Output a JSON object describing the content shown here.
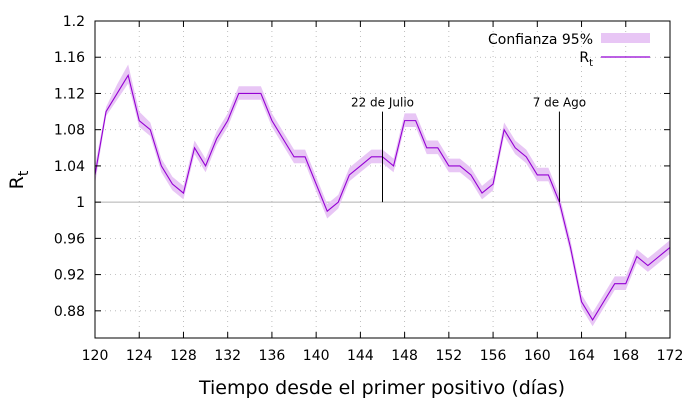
{
  "chart_data": {
    "type": "line",
    "xlabel": "Tiempo desde el primer positivo (días)",
    "ylabel": "R",
    "ylabel_sub": "t",
    "xlim": [
      120,
      172
    ],
    "ylim": [
      0.85,
      1.2
    ],
    "xticks": [
      120,
      124,
      128,
      132,
      136,
      140,
      144,
      148,
      152,
      156,
      160,
      164,
      168,
      172
    ],
    "xtick_labels": [
      "120",
      "124",
      "128",
      "132",
      "136",
      "140",
      "144",
      "148",
      "152",
      "156",
      "160",
      "164",
      "168",
      "172"
    ],
    "yticks": [
      0.88,
      0.92,
      0.96,
      1.0,
      1.04,
      1.08,
      1.12,
      1.16,
      1.2
    ],
    "ytick_labels": [
      "0.88",
      "0.92",
      "0.96",
      "1",
      "1.04",
      "1.08",
      "1.12",
      "1.16",
      "1.2"
    ],
    "grid": true,
    "reference_line": 1.0,
    "legend_position": "top-right",
    "legend": {
      "band": "Confianza 95%",
      "line": "R",
      "line_sub": "t"
    },
    "colors": {
      "line": "#9400d3",
      "band": "#e8c6f5",
      "grid": "#b0b0b0",
      "reference": "#b0b0b0"
    },
    "annotations": [
      {
        "label": "22 de Julio",
        "x": 146,
        "y_from": 1.0,
        "y_to": 1.1
      },
      {
        "label": "7 de Ago",
        "x": 162,
        "y_from": 1.0,
        "y_to": 1.1
      }
    ],
    "series": [
      {
        "name": "R",
        "x": [
          120,
          121,
          122,
          123,
          124,
          125,
          126,
          127,
          128,
          129,
          130,
          131,
          132,
          133,
          134,
          135,
          136,
          137,
          138,
          139,
          140,
          141,
          142,
          143,
          144,
          145,
          146,
          147,
          148,
          149,
          150,
          151,
          152,
          153,
          154,
          155,
          156,
          157,
          158,
          159,
          160,
          161,
          162,
          163,
          164,
          165,
          166,
          167,
          168,
          169,
          170,
          171,
          172
        ],
        "values": [
          1.03,
          1.1,
          1.12,
          1.14,
          1.09,
          1.08,
          1.04,
          1.02,
          1.01,
          1.06,
          1.04,
          1.07,
          1.09,
          1.12,
          1.12,
          1.12,
          1.09,
          1.07,
          1.05,
          1.05,
          1.02,
          0.99,
          1.0,
          1.03,
          1.04,
          1.05,
          1.05,
          1.04,
          1.09,
          1.09,
          1.06,
          1.06,
          1.04,
          1.04,
          1.03,
          1.01,
          1.02,
          1.08,
          1.06,
          1.05,
          1.03,
          1.03,
          1.0,
          0.95,
          0.89,
          0.87,
          0.89,
          0.91,
          0.91,
          0.94,
          0.93,
          0.94,
          0.95
        ],
        "lower": [
          1.02,
          1.095,
          1.113,
          1.131,
          1.083,
          1.073,
          1.033,
          1.013,
          1.003,
          1.053,
          1.033,
          1.063,
          1.083,
          1.113,
          1.113,
          1.113,
          1.083,
          1.063,
          1.043,
          1.043,
          1.012,
          0.982,
          0.993,
          1.023,
          1.033,
          1.043,
          1.043,
          1.033,
          1.083,
          1.083,
          1.053,
          1.053,
          1.033,
          1.033,
          1.023,
          1.003,
          1.013,
          1.073,
          1.053,
          1.043,
          1.023,
          1.023,
          0.993,
          0.943,
          0.883,
          0.863,
          0.883,
          0.903,
          0.903,
          0.933,
          0.923,
          0.933,
          0.943
        ],
        "upper": [
          1.04,
          1.105,
          1.13,
          1.152,
          1.1,
          1.088,
          1.048,
          1.028,
          1.018,
          1.068,
          1.048,
          1.078,
          1.098,
          1.128,
          1.128,
          1.128,
          1.098,
          1.078,
          1.058,
          1.058,
          1.028,
          0.998,
          1.008,
          1.038,
          1.048,
          1.058,
          1.058,
          1.048,
          1.098,
          1.098,
          1.068,
          1.068,
          1.048,
          1.048,
          1.038,
          1.018,
          1.028,
          1.088,
          1.068,
          1.058,
          1.038,
          1.038,
          1.008,
          0.958,
          0.898,
          0.878,
          0.898,
          0.918,
          0.918,
          0.948,
          0.938,
          0.948,
          0.958
        ]
      }
    ]
  }
}
